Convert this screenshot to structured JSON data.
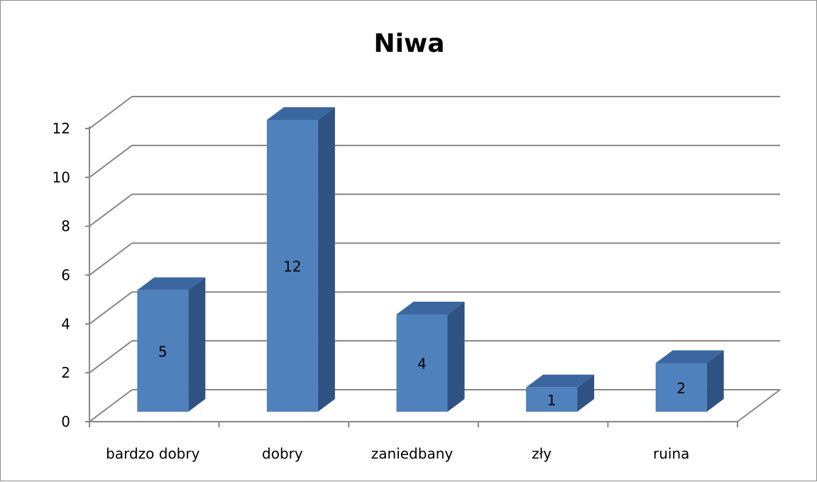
{
  "chart_data": {
    "type": "bar",
    "title": "Niwa",
    "categories": [
      "bardzo dobry",
      "dobry",
      "zaniedbany",
      "zły",
      "ruina"
    ],
    "values": [
      5,
      12,
      4,
      1,
      2
    ],
    "data_labels": [
      "5",
      "12",
      "4",
      "1",
      "2"
    ],
    "xlabel": "",
    "ylabel": "",
    "ylim": [
      0,
      12
    ],
    "yticks": [
      "0",
      "2",
      "4",
      "6",
      "8",
      "10",
      "12"
    ],
    "grid": true,
    "legend": "none",
    "style": "3d-column"
  },
  "colors": {
    "bar_front": "#4f81bd",
    "bar_top": "#3b67a0",
    "bar_side": "#2f5283",
    "grid": "#868686",
    "axis": "#868686"
  }
}
